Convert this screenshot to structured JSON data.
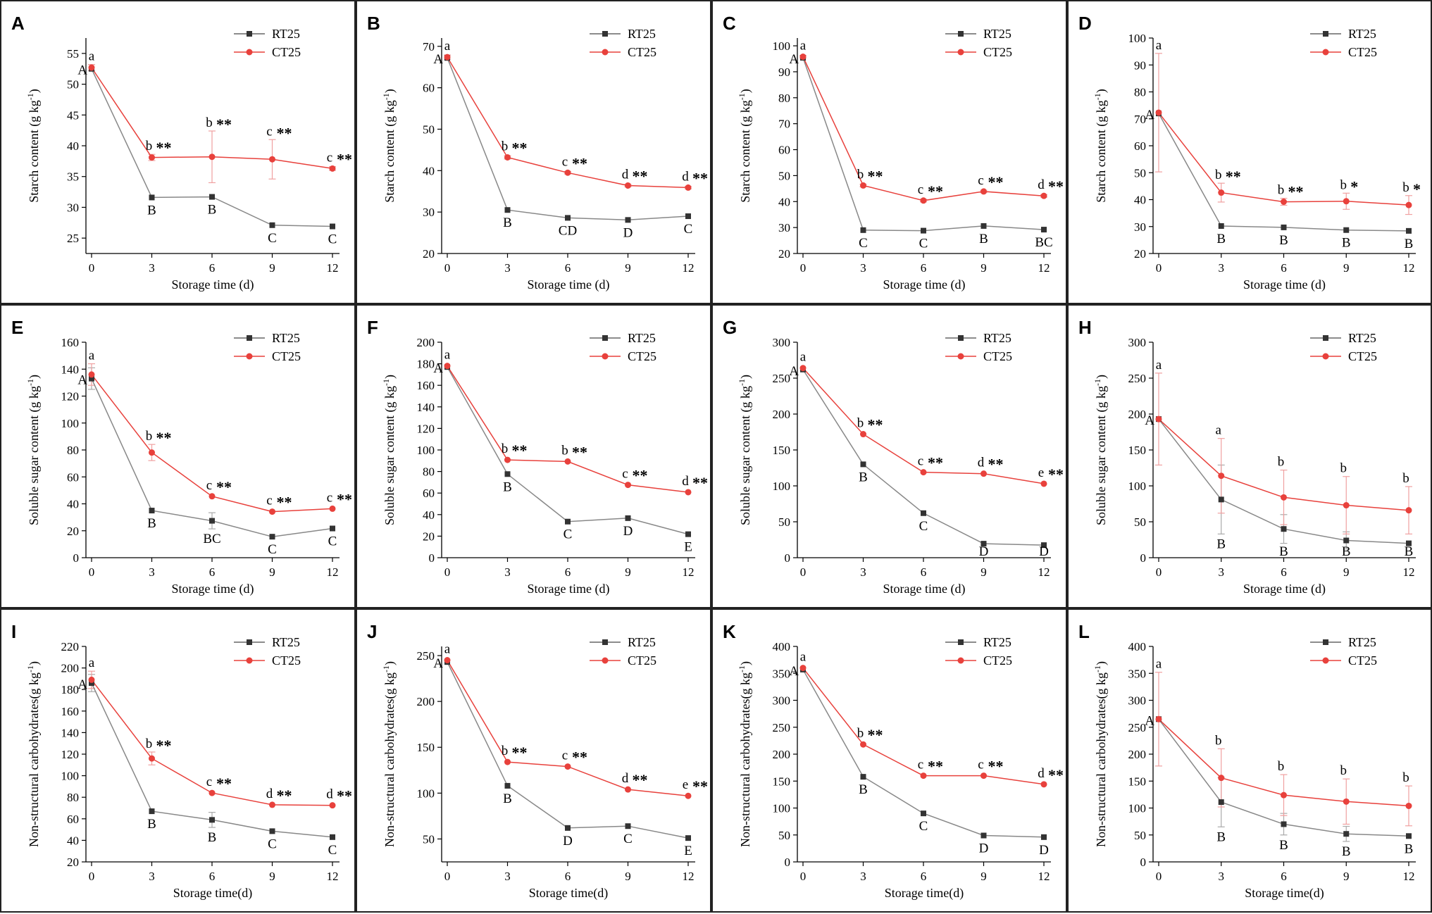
{
  "legend": {
    "rt": "RT25",
    "ct": "CT25"
  },
  "colors": {
    "rt": "#666666",
    "ct": "#e8413c",
    "rtErr": "#aaaaaa",
    "ctErr": "#f0a0a0"
  },
  "chart_data": [
    {
      "id": "A",
      "type": "line",
      "ylabel": "Starch content (g kg",
      "ysup": "-1",
      "yclose": ")",
      "xlabel": "Storage time (d)",
      "x": [
        0,
        3,
        6,
        9,
        12
      ],
      "ylim": [
        22.5,
        57.5
      ],
      "yticks": [
        25,
        30,
        35,
        40,
        45,
        50,
        55
      ],
      "series": [
        {
          "name": "RT25",
          "values": [
            52.5,
            31.6,
            31.7,
            27.1,
            26.9
          ],
          "errors": [
            0,
            0,
            0,
            0,
            0
          ]
        },
        {
          "name": "CT25",
          "values": [
            52.7,
            38.1,
            38.2,
            37.8,
            36.3
          ],
          "errors": [
            0.5,
            0.5,
            4.2,
            3.2,
            0.3
          ]
        }
      ],
      "letters_ct": [
        "a",
        "b",
        "b",
        "c",
        "c"
      ],
      "letters_rt": [
        "A",
        "B",
        "B",
        "C",
        "C"
      ],
      "stars": [
        "",
        "**",
        "**",
        "**",
        "**"
      ]
    },
    {
      "id": "B",
      "type": "line",
      "ylabel": "Starch content (g kg",
      "ysup": "-1",
      "yclose": ")",
      "xlabel": "Storage time (d)",
      "x": [
        0,
        3,
        6,
        9,
        12
      ],
      "ylim": [
        20,
        72
      ],
      "yticks": [
        20,
        30,
        40,
        50,
        60,
        70
      ],
      "series": [
        {
          "name": "RT25",
          "values": [
            67.2,
            30.5,
            28.6,
            28.1,
            29.0
          ],
          "errors": [
            0,
            0,
            0,
            0,
            0
          ]
        },
        {
          "name": "CT25",
          "values": [
            67.4,
            43.2,
            39.5,
            36.4,
            35.9
          ],
          "errors": [
            0.5,
            0.4,
            0.3,
            0.3,
            0.3
          ]
        }
      ],
      "letters_ct": [
        "a",
        "b",
        "c",
        "d",
        "d"
      ],
      "letters_rt": [
        "A",
        "B",
        "CD",
        "D",
        "C"
      ],
      "stars": [
        "",
        "**",
        "**",
        "**",
        "**"
      ]
    },
    {
      "id": "C",
      "type": "line",
      "ylabel": "Starch content (g kg",
      "ysup": "-1",
      "yclose": ")",
      "xlabel": "Storage time (d)",
      "x": [
        0,
        3,
        6,
        9,
        12
      ],
      "ylim": [
        20,
        103
      ],
      "yticks": [
        20,
        30,
        40,
        50,
        60,
        70,
        80,
        90,
        100
      ],
      "series": [
        {
          "name": "RT25",
          "values": [
            95.4,
            29.0,
            28.8,
            30.6,
            29.2
          ],
          "errors": [
            0,
            0,
            0,
            0,
            0
          ]
        },
        {
          "name": "CT25",
          "values": [
            95.8,
            46.2,
            40.4,
            43.9,
            42.2
          ],
          "errors": [
            0.5,
            0.5,
            0.5,
            0.5,
            0.5
          ]
        }
      ],
      "letters_ct": [
        "a",
        "b",
        "c",
        "c",
        "d"
      ],
      "letters_rt": [
        "A",
        "C",
        "C",
        "B",
        "BC"
      ],
      "stars": [
        "",
        "**",
        "**",
        "**",
        "**"
      ]
    },
    {
      "id": "D",
      "type": "line",
      "ylabel": "Starch content (g kg",
      "ysup": "-1",
      "yclose": ")",
      "xlabel": "Storage time (d)",
      "x": [
        0,
        3,
        6,
        9,
        12
      ],
      "ylim": [
        20,
        100
      ],
      "yticks": [
        20,
        30,
        40,
        50,
        60,
        70,
        80,
        90,
        100
      ],
      "series": [
        {
          "name": "RT25",
          "values": [
            72,
            30.2,
            29.7,
            28.7,
            28.4
          ],
          "errors": [
            0,
            0,
            0,
            0,
            0
          ]
        },
        {
          "name": "CT25",
          "values": [
            72.3,
            42.6,
            39.2,
            39.4,
            38.0
          ],
          "errors": [
            22,
            3.5,
            1.3,
            3.0,
            3.5
          ]
        }
      ],
      "letters_ct": [
        "a",
        "b",
        "b",
        "b",
        "b"
      ],
      "letters_rt": [
        "A",
        "B",
        "B",
        "B",
        "B"
      ],
      "stars": [
        "",
        "**",
        "**",
        "*",
        "*"
      ]
    },
    {
      "id": "E",
      "type": "line",
      "ylabel": "Soluble sugar content (g kg",
      "ysup": "-1",
      "yclose": ")",
      "xlabel": "Storage time (d)",
      "x": [
        0,
        3,
        6,
        9,
        12
      ],
      "ylim": [
        0,
        160
      ],
      "yticks": [
        0,
        20,
        40,
        60,
        80,
        100,
        120,
        140,
        160
      ],
      "series": [
        {
          "name": "RT25",
          "values": [
            133,
            35.0,
            27.4,
            15.6,
            21.7
          ],
          "errors": [
            8,
            0,
            6,
            0,
            0
          ]
        },
        {
          "name": "CT25",
          "values": [
            136,
            78.1,
            45.6,
            34.2,
            36.4
          ],
          "errors": [
            8,
            6,
            0,
            0,
            0
          ]
        }
      ],
      "letters_ct": [
        "a",
        "b",
        "c",
        "c",
        "c"
      ],
      "letters_rt": [
        "A",
        "B",
        "BC",
        "C",
        "C"
      ],
      "stars": [
        "",
        "**",
        "**",
        "**",
        "**"
      ]
    },
    {
      "id": "F",
      "type": "line",
      "ylabel": "Soluble sugar content (g kg",
      "ysup": "-1",
      "yclose": ")",
      "xlabel": "Storage time (d)",
      "x": [
        0,
        3,
        6,
        9,
        12
      ],
      "ylim": [
        0,
        200
      ],
      "yticks": [
        0,
        20,
        40,
        60,
        80,
        100,
        120,
        140,
        160,
        180,
        200
      ],
      "series": [
        {
          "name": "RT25",
          "values": [
            177,
            77.6,
            33.5,
            36.7,
            21.8
          ],
          "errors": [
            0,
            0,
            0,
            0,
            0
          ]
        },
        {
          "name": "CT25",
          "values": [
            178,
            90.8,
            89.3,
            67.6,
            60.8
          ],
          "errors": [
            0,
            0,
            0,
            0,
            0
          ]
        }
      ],
      "letters_ct": [
        "a",
        "b",
        "b",
        "c",
        "d"
      ],
      "letters_rt": [
        "A",
        "B",
        "C",
        "D",
        "E"
      ],
      "stars": [
        "",
        "**",
        "**",
        "**",
        "**"
      ]
    },
    {
      "id": "G",
      "type": "line",
      "ylabel": "Soluble sugar content (g kg",
      "ysup": "-1",
      "yclose": ")",
      "xlabel": "Storage time (d)",
      "x": [
        0,
        3,
        6,
        9,
        12
      ],
      "ylim": [
        0,
        300
      ],
      "yticks": [
        0,
        50,
        100,
        150,
        200,
        250,
        300
      ],
      "series": [
        {
          "name": "RT25",
          "values": [
            262,
            130,
            62,
            19.5,
            17.5
          ],
          "errors": [
            0,
            0,
            0,
            0,
            0
          ]
        },
        {
          "name": "CT25",
          "values": [
            264,
            172,
            119,
            117,
            103
          ],
          "errors": [
            0,
            0,
            0,
            0,
            0
          ]
        }
      ],
      "letters_ct": [
        "a",
        "b",
        "c",
        "d",
        "e"
      ],
      "letters_rt": [
        "A",
        "B",
        "C",
        "D",
        "D"
      ],
      "stars": [
        "",
        "**",
        "**",
        "**",
        "**"
      ]
    },
    {
      "id": "H",
      "type": "line",
      "ylabel": "Soluble sugar content (g kg",
      "ysup": "-1",
      "yclose": ")",
      "xlabel": "Storage time (d)",
      "x": [
        0,
        3,
        6,
        9,
        12
      ],
      "ylim": [
        0,
        300
      ],
      "yticks": [
        0,
        50,
        100,
        150,
        200,
        250,
        300
      ],
      "series": [
        {
          "name": "RT25",
          "values": [
            193,
            81,
            40,
            24,
            20
          ],
          "errors": [
            0,
            48,
            20,
            12,
            0
          ]
        },
        {
          "name": "CT25",
          "values": [
            193,
            114,
            84,
            73,
            66
          ],
          "errors": [
            64,
            52,
            38,
            40,
            33
          ]
        }
      ],
      "letters_ct": [
        "a",
        "a",
        "b",
        "b",
        "b"
      ],
      "letters_rt": [
        "A",
        "B",
        "B",
        "B",
        "B"
      ],
      "stars": [
        "",
        "",
        "",
        "",
        ""
      ]
    },
    {
      "id": "I",
      "type": "line",
      "ylabel": "Non-structural carbohydrates(g kg",
      "ysup": "-1",
      "yclose": ")",
      "xlabel": "Storage time(d)",
      "x": [
        0,
        3,
        6,
        9,
        12
      ],
      "ylim": [
        20,
        220
      ],
      "yticks": [
        20,
        40,
        60,
        80,
        100,
        120,
        140,
        160,
        180,
        200,
        220
      ],
      "series": [
        {
          "name": "RT25",
          "values": [
            186,
            67,
            59,
            48.5,
            43
          ],
          "errors": [
            8,
            0,
            7,
            0,
            0
          ]
        },
        {
          "name": "CT25",
          "values": [
            189,
            116,
            84,
            73,
            72.5
          ],
          "errors": [
            8,
            6,
            0,
            0,
            0
          ]
        }
      ],
      "letters_ct": [
        "a",
        "b",
        "c",
        "d",
        "d"
      ],
      "letters_rt": [
        "A",
        "B",
        "B",
        "C",
        "C"
      ],
      "stars": [
        "",
        "**",
        "**",
        "**",
        "**"
      ]
    },
    {
      "id": "J",
      "type": "line",
      "ylabel": "Non-structural carbohydrates(g kg",
      "ysup": "-1",
      "yclose": ")",
      "xlabel": "Storage time(d)",
      "x": [
        0,
        3,
        6,
        9,
        12
      ],
      "ylim": [
        25,
        260
      ],
      "yticks": [
        50,
        100,
        150,
        200,
        250
      ],
      "series": [
        {
          "name": "RT25",
          "values": [
            243,
            108,
            62,
            64,
            51
          ],
          "errors": [
            0,
            0,
            0,
            0,
            0
          ]
        },
        {
          "name": "CT25",
          "values": [
            245,
            134,
            129,
            104,
            97
          ],
          "errors": [
            0,
            0,
            0,
            0,
            0
          ]
        }
      ],
      "letters_ct": [
        "a",
        "b",
        "c",
        "d",
        "e"
      ],
      "letters_rt": [
        "A",
        "B",
        "D",
        "C",
        "E"
      ],
      "stars": [
        "",
        "**",
        "**",
        "**",
        "**"
      ]
    },
    {
      "id": "K",
      "type": "line",
      "ylabel": "Non-structural carbohydrates(g kg",
      "ysup": "-1",
      "yclose": ")",
      "xlabel": "Storage time(d)",
      "x": [
        0,
        3,
        6,
        9,
        12
      ],
      "ylim": [
        0,
        400
      ],
      "yticks": [
        0,
        50,
        100,
        150,
        200,
        250,
        300,
        350,
        400
      ],
      "series": [
        {
          "name": "RT25",
          "values": [
            357,
            158,
            90,
            49,
            46
          ],
          "errors": [
            0,
            0,
            0,
            0,
            0
          ]
        },
        {
          "name": "CT25",
          "values": [
            360,
            218,
            160,
            160,
            144
          ],
          "errors": [
            0,
            0,
            0,
            0,
            0
          ]
        }
      ],
      "letters_ct": [
        "a",
        "b",
        "c",
        "c",
        "d"
      ],
      "letters_rt": [
        "A",
        "B",
        "C",
        "D",
        "D"
      ],
      "stars": [
        "",
        "**",
        "**",
        "**",
        "**"
      ]
    },
    {
      "id": "L",
      "type": "line",
      "ylabel": "Non-structural carbohydrates(g kg",
      "ysup": "-1",
      "yclose": ")",
      "xlabel": "Storage time(d)",
      "x": [
        0,
        3,
        6,
        9,
        12
      ],
      "ylim": [
        0,
        400
      ],
      "yticks": [
        0,
        50,
        100,
        150,
        200,
        250,
        300,
        350,
        400
      ],
      "series": [
        {
          "name": "RT25",
          "values": [
            265,
            111,
            70,
            52,
            48
          ],
          "errors": [
            0,
            46,
            20,
            14,
            0
          ]
        },
        {
          "name": "CT25",
          "values": [
            265,
            156,
            124,
            112,
            104
          ],
          "errors": [
            87,
            54,
            38,
            42,
            37
          ]
        }
      ],
      "letters_ct": [
        "a",
        "b",
        "b",
        "b",
        "b"
      ],
      "letters_rt": [
        "A",
        "B",
        "B",
        "B",
        "B"
      ],
      "stars": [
        "",
        "",
        "",
        "",
        ""
      ]
    }
  ]
}
